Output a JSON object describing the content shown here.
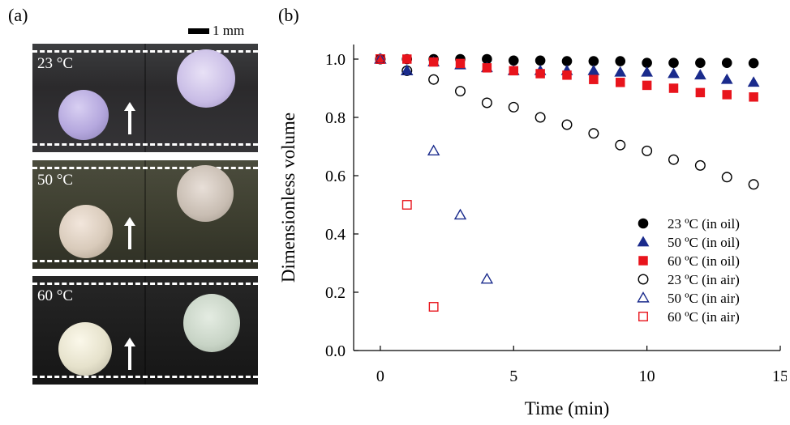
{
  "panel_a": {
    "label": "(a)",
    "scale_bar_label": "1 mm",
    "photos": [
      {
        "temperature": "23 °C",
        "ball_color": "#c2b6e6"
      },
      {
        "temperature": "50 °C",
        "ball_color": "#e0d4c6"
      },
      {
        "temperature": "60 °C",
        "ball_color": "#f0ecd8"
      }
    ]
  },
  "panel_b": {
    "label": "(b)"
  },
  "chart_data": {
    "type": "scatter",
    "xlabel": "Time (min)",
    "ylabel": "Dimensionless volume",
    "xlim": [
      -1,
      15
    ],
    "ylim": [
      0.0,
      1.05
    ],
    "xticks": [
      0,
      5,
      10,
      15
    ],
    "yticks": [
      0.0,
      0.2,
      0.4,
      0.6,
      0.8,
      1.0
    ],
    "xtick_labels": [
      "0",
      "5",
      "10",
      "15"
    ],
    "ytick_labels": [
      "0.0",
      "0.2",
      "0.4",
      "0.6",
      "0.8",
      "1.0"
    ],
    "grid": false,
    "legend_position": "bottom-right",
    "series": [
      {
        "name": "23 ºC (in oil)",
        "marker": "circle",
        "filled": true,
        "color": "#000000",
        "x": [
          0,
          1,
          2,
          3,
          4,
          5,
          6,
          7,
          8,
          9,
          10,
          11,
          12,
          13,
          14
        ],
        "y": [
          1.0,
          1.0,
          1.0,
          1.0,
          1.0,
          0.995,
          0.995,
          0.993,
          0.993,
          0.993,
          0.987,
          0.987,
          0.987,
          0.987,
          0.986
        ]
      },
      {
        "name": "50 ºC (in oil)",
        "marker": "triangle",
        "filled": true,
        "color": "#1a2b8c",
        "x": [
          0,
          1,
          2,
          3,
          4,
          5,
          6,
          7,
          8,
          9,
          10,
          11,
          12,
          13,
          14
        ],
        "y": [
          1.0,
          0.96,
          0.99,
          0.98,
          0.97,
          0.96,
          0.96,
          0.96,
          0.96,
          0.955,
          0.955,
          0.95,
          0.945,
          0.93,
          0.92
        ]
      },
      {
        "name": "60 ºC (in oil)",
        "marker": "square",
        "filled": true,
        "color": "#e8141c",
        "x": [
          0,
          1,
          2,
          3,
          4,
          5,
          6,
          7,
          8,
          9,
          10,
          11,
          12,
          13,
          14
        ],
        "y": [
          1.0,
          1.0,
          0.99,
          0.985,
          0.97,
          0.96,
          0.95,
          0.945,
          0.93,
          0.92,
          0.91,
          0.9,
          0.885,
          0.878,
          0.87
        ]
      },
      {
        "name": "23 ºC (in air)",
        "marker": "circle",
        "filled": false,
        "color": "#000000",
        "x": [
          0,
          1,
          2,
          3,
          4,
          5,
          6,
          7,
          8,
          9,
          10,
          11,
          12,
          13,
          14
        ],
        "y": [
          1.0,
          0.96,
          0.93,
          0.89,
          0.85,
          0.835,
          0.8,
          0.775,
          0.745,
          0.705,
          0.685,
          0.655,
          0.635,
          0.595,
          0.57
        ]
      },
      {
        "name": "50 ºC (in air)",
        "marker": "triangle",
        "filled": false,
        "color": "#1a2b8c",
        "x": [
          0,
          1,
          2,
          3,
          4
        ],
        "y": [
          1.0,
          0.96,
          0.685,
          0.465,
          0.245
        ]
      },
      {
        "name": "60 ºC (in air)",
        "marker": "square",
        "filled": false,
        "color": "#e8141c",
        "x": [
          0,
          1,
          2
        ],
        "y": [
          1.0,
          0.5,
          0.15
        ]
      }
    ]
  }
}
